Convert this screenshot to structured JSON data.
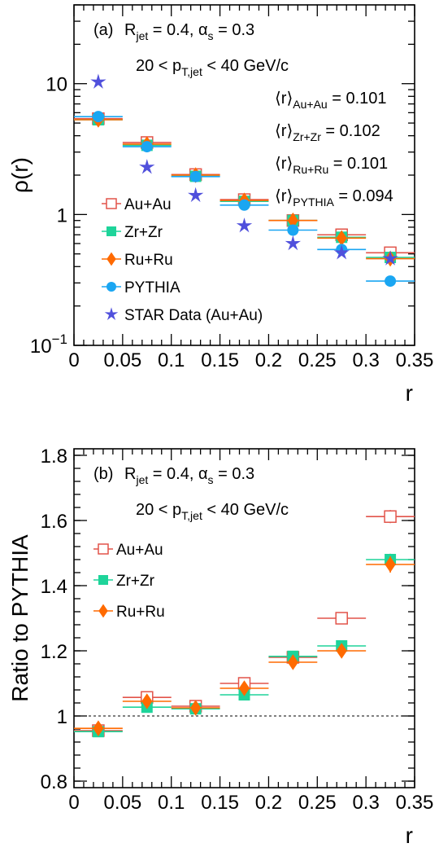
{
  "colors": {
    "Au+Au": "#e2544a",
    "Zr+Zr": "#1ed49a",
    "Ru+Ru": "#ff6a00",
    "PYTHIA": "#1aa6f2",
    "STAR Data (Au+Au)": "#5050dc"
  },
  "chart_data": [
    {
      "panel": "a",
      "type": "scatter",
      "xlabel": "r",
      "ylabel": "ρ(r)",
      "ylog": true,
      "xlim": [
        0,
        0.35
      ],
      "ylim": [
        0.1,
        40
      ],
      "x_ticks": [
        "0",
        "0.05",
        "0.1",
        "0.15",
        "0.2",
        "0.25",
        "0.3",
        "0.35"
      ],
      "y_ticks": [
        "10^-1",
        "1",
        "10"
      ],
      "annotations": {
        "label": "(a)",
        "rjet": "R_jet = 0.4, α_s = 0.3",
        "pt": "20 < p_T,jet < 40 GeV/c",
        "means": [
          {
            "name": "⟨r⟩_Au+Au",
            "value": "0.101"
          },
          {
            "name": "⟨r⟩_Zr+Zr",
            "value": "0.102"
          },
          {
            "name": "⟨r⟩_Ru+Ru",
            "value": "0.101"
          },
          {
            "name": "⟨r⟩_PYTHIA",
            "value": "0.094"
          }
        ]
      },
      "legend_position": "bottom-left",
      "bin_edges": [
        0,
        0.05,
        0.1,
        0.15,
        0.2,
        0.25,
        0.3,
        0.35
      ],
      "x": [
        0.025,
        0.075,
        0.125,
        0.175,
        0.225,
        0.275,
        0.325
      ],
      "series": [
        {
          "name": "Au+Au",
          "marker": "open-square",
          "values": [
            5.4,
            3.55,
            2.02,
            1.3,
            0.9,
            0.7,
            0.51
          ]
        },
        {
          "name": "Zr+Zr",
          "marker": "filled-square",
          "values": [
            5.3,
            3.38,
            1.96,
            1.26,
            0.9,
            0.67,
            0.47
          ]
        },
        {
          "name": "Ru+Ru",
          "marker": "filled-diamond",
          "values": [
            5.3,
            3.45,
            2.0,
            1.28,
            0.9,
            0.66,
            0.46
          ]
        },
        {
          "name": "PYTHIA",
          "marker": "filled-circle",
          "values": [
            5.6,
            3.3,
            1.95,
            1.18,
            0.76,
            0.54,
            0.31
          ]
        },
        {
          "name": "STAR Data (Au+Au)",
          "marker": "star",
          "values": [
            10.3,
            2.3,
            1.4,
            0.82,
            0.6,
            0.51,
            0.46
          ]
        }
      ]
    },
    {
      "panel": "b",
      "type": "scatter",
      "xlabel": "r",
      "ylabel": "Ratio to PYTHIA",
      "xlim": [
        0,
        0.35
      ],
      "ylim": [
        0.78,
        1.82
      ],
      "reference_line": 1.0,
      "x_ticks": [
        "0",
        "0.05",
        "0.1",
        "0.15",
        "0.2",
        "0.25",
        "0.3",
        "0.35"
      ],
      "y_ticks": [
        "0.8",
        "1",
        "1.2",
        "1.4",
        "1.6",
        "1.8"
      ],
      "annotations": {
        "label": "(b)",
        "rjet": "R_jet = 0.4, α_s = 0.3",
        "pt": "20 < p_T,jet < 40 GeV/c"
      },
      "legend_position": "top-left",
      "bin_edges": [
        0,
        0.05,
        0.1,
        0.15,
        0.2,
        0.25,
        0.3,
        0.35
      ],
      "x": [
        0.025,
        0.075,
        0.125,
        0.175,
        0.225,
        0.275,
        0.325
      ],
      "series": [
        {
          "name": "Au+Au",
          "marker": "open-square",
          "values": [
            0.955,
            1.057,
            1.03,
            1.1,
            1.18,
            1.3,
            1.612
          ],
          "errors": [
            0.008,
            0.01,
            0.008,
            0.012,
            0.012,
            0.014,
            0.02
          ]
        },
        {
          "name": "Zr+Zr",
          "marker": "filled-square",
          "values": [
            0.952,
            1.027,
            1.022,
            1.065,
            1.183,
            1.215,
            1.48
          ],
          "errors": [
            0.006,
            0.008,
            0.006,
            0.01,
            0.012,
            0.014,
            0.018
          ]
        },
        {
          "name": "Ru+Ru",
          "marker": "filled-diamond",
          "values": [
            0.962,
            1.045,
            1.025,
            1.085,
            1.165,
            1.2,
            1.465
          ],
          "errors": [
            0.008,
            0.01,
            0.008,
            0.012,
            0.012,
            0.014,
            0.025
          ]
        }
      ]
    }
  ]
}
